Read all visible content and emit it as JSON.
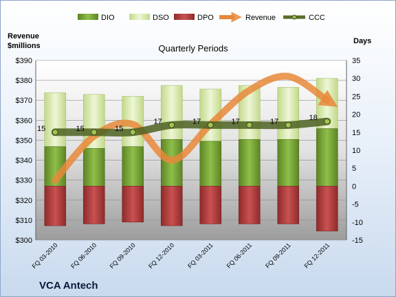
{
  "chart_data": {
    "type": "bar",
    "title": "Quarterly Periods",
    "company": "VCA Antech",
    "y_left_label_line1": "Revenue",
    "y_left_label_line2": "$millions",
    "y_right_label": "Days",
    "categories": [
      "FQ 03-2010",
      "FQ 06-2010",
      "FQ 09-2010",
      "FQ 12-2010",
      "FQ 03-2011",
      "FQ 06-2011",
      "FQ 09-2011",
      "FQ 12-2011"
    ],
    "y_left": {
      "min": 300,
      "max": 390,
      "step": 10,
      "ticks": [
        "$300",
        "$310",
        "$320",
        "$330",
        "$340",
        "$350",
        "$360",
        "$370",
        "$380",
        "$390"
      ]
    },
    "y_right": {
      "min": -15,
      "max": 35,
      "step": 5,
      "ticks": [
        "-15",
        "-10",
        "-5",
        "0",
        "5",
        "10",
        "15",
        "20",
        "25",
        "30",
        "35"
      ]
    },
    "legend": [
      "DIO",
      "DSO",
      "DPO",
      "Revenue",
      "CCC"
    ],
    "series": [
      {
        "name": "DIO",
        "axis": "right",
        "values": [
          11,
          10.5,
          11,
          13,
          12.5,
          13,
          13,
          16
        ],
        "color": "#6f9a2e"
      },
      {
        "name": "DSO",
        "axis": "right",
        "values": [
          26,
          25.5,
          25,
          28,
          27,
          28,
          27.5,
          30
        ],
        "color": "#d6e8a8"
      },
      {
        "name": "DPO",
        "axis": "right",
        "values": [
          -11,
          -10.5,
          -10,
          -11,
          -10.5,
          -10.5,
          -10.5,
          -12.5
        ],
        "color": "#b03a3a"
      },
      {
        "name": "Revenue",
        "axis": "left",
        "values": [
          330,
          352,
          358,
          340,
          358,
          375,
          382,
          370
        ],
        "color": "#e8883a"
      },
      {
        "name": "CCC",
        "axis": "right",
        "values": [
          15,
          15,
          15,
          17,
          17,
          17,
          17,
          18
        ],
        "color": "#5a6e2a"
      }
    ],
    "ccc_labels": [
      "15",
      "15",
      "15",
      "17",
      "17",
      "17",
      "17",
      "18"
    ]
  }
}
